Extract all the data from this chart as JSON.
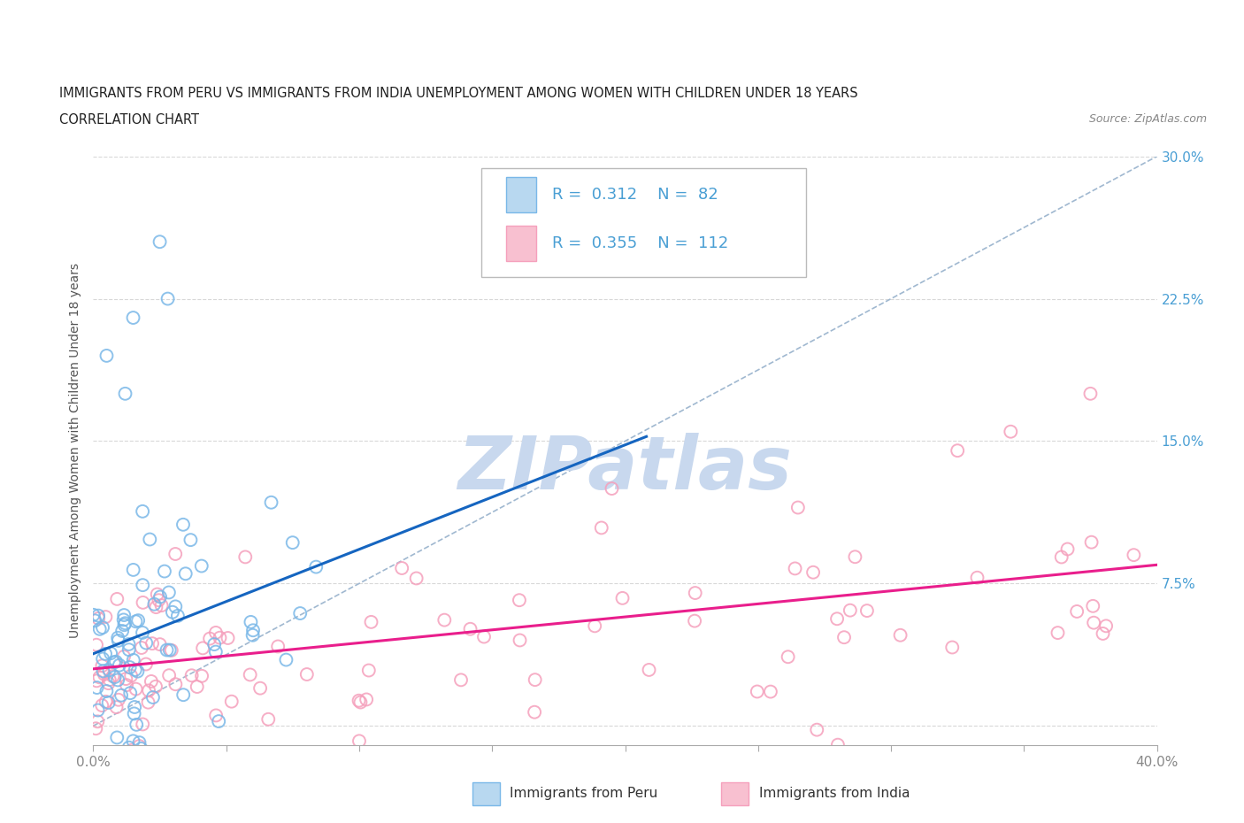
{
  "title_line1": "IMMIGRANTS FROM PERU VS IMMIGRANTS FROM INDIA UNEMPLOYMENT AMONG WOMEN WITH CHILDREN UNDER 18 YEARS",
  "title_line2": "CORRELATION CHART",
  "source": "Source: ZipAtlas.com",
  "ylabel": "Unemployment Among Women with Children Under 18 years",
  "xlim": [
    0.0,
    0.4
  ],
  "ylim": [
    -0.01,
    0.3
  ],
  "plot_ylim": [
    -0.01,
    0.3
  ],
  "peru_R": 0.312,
  "peru_N": 82,
  "india_R": 0.355,
  "india_N": 112,
  "peru_color": "#7ab8e8",
  "india_color": "#f5a0bc",
  "peru_line_color": "#1565C0",
  "india_line_color": "#e91e8c",
  "dashed_line_color": "#a0b8d0",
  "legend_label_peru": "Immigrants from Peru",
  "legend_label_india": "Immigrants from India",
  "watermark_text": "ZIPatlas",
  "watermark_color": "#c8d8ee",
  "background_color": "#ffffff",
  "grid_color": "#d8d8d8",
  "title_color": "#222222",
  "axis_label_color": "#555555",
  "tick_label_color": "#4a9fd4",
  "right_tick_color": "#4a9fd4",
  "bottom_tick_color": "#888888"
}
